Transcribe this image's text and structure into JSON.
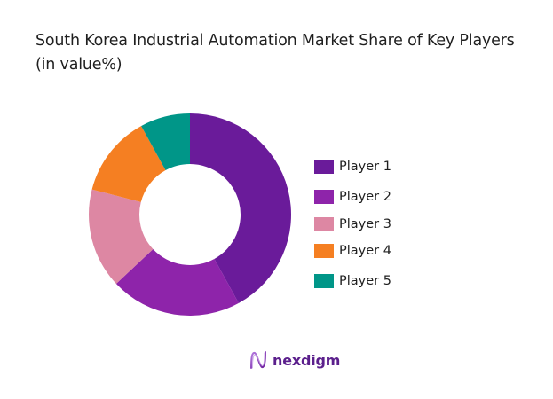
{
  "title": "South Korea Industrial Automation Market Share of Key Players (in value%)",
  "brand": {
    "name": "nexdigm",
    "icon": "nexdigm-wave-logo-icon",
    "color": "#5B1F8C"
  },
  "legend": [
    {
      "label": "Player 1",
      "color": "#6A1B9A"
    },
    {
      "label": "Player 2",
      "color": "#8E24AA"
    },
    {
      "label": "Player 3",
      "color": "#DD87A3"
    },
    {
      "label": "Player 4",
      "color": "#F57F22"
    },
    {
      "label": "Player 5",
      "color": "#009688"
    }
  ],
  "chart_data": {
    "type": "pie",
    "subtype": "donut",
    "title": "South Korea Industrial Automation Market Share of Key Players (in value%)",
    "categories": [
      "Player 1",
      "Player 2",
      "Player 3",
      "Player 4",
      "Player 5"
    ],
    "values": [
      42,
      21,
      16,
      13,
      8
    ],
    "unit": "%",
    "colors": [
      "#6A1B9A",
      "#8E24AA",
      "#DD87A3",
      "#F57F22",
      "#009688"
    ],
    "start_angle_deg": 0,
    "direction": "clockwise",
    "inner_radius_ratio": 0.5,
    "data_labels": false,
    "legend_position": "right"
  }
}
